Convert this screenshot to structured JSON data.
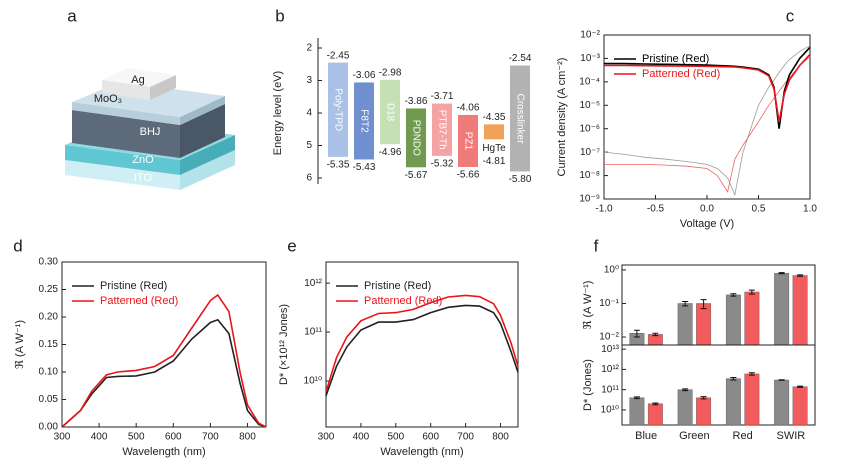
{
  "schematic": {
    "panel": "a",
    "layers": [
      "Ag",
      "MoO₃",
      "BHJ",
      "ZnO",
      "ITO"
    ]
  },
  "chart_data": [
    {
      "type": "floating_bar",
      "panel": "b",
      "ylabel": "Energy level (eV)",
      "categories": [
        "Poly-TPD",
        "F8T2",
        "D18",
        "PDNDO",
        "PTB7-Th",
        "PZ1",
        "HgTe",
        "Crosslinker"
      ],
      "colors": [
        "#a9c1e6",
        "#6f8fcf",
        "#c5e0b3",
        "#6f9a4f",
        "#f3a3a3",
        "#f07b7b",
        "#f2a05a",
        "#b3b3b3"
      ],
      "series": [
        {
          "values": [
            -2.45,
            -3.06,
            -2.98,
            -3.86,
            -3.71,
            -4.06,
            -4.35,
            -2.54
          ],
          "value_labels": [
            "-2.45",
            "-3.06",
            "-2.98",
            "-3.86",
            "-3.71",
            "-4.06",
            "-4.35",
            "-2.54"
          ]
        },
        {
          "values": [
            -5.35,
            -5.43,
            -4.96,
            -5.67,
            -5.32,
            -5.66,
            -4.81,
            -5.8
          ],
          "value_labels": [
            "-5.35",
            "-5.43",
            "-4.96",
            "-5.67",
            "-5.32",
            "-5.66",
            "-4.81",
            "-5.80"
          ]
        }
      ],
      "ylim": [
        -6,
        -2
      ],
      "yticks": [
        {
          "value": -2,
          "label": "2"
        },
        {
          "value": -3,
          "label": "3"
        },
        {
          "value": -4,
          "label": "4"
        },
        {
          "value": -5,
          "label": "5"
        },
        {
          "value": -6,
          "label": "6"
        }
      ]
    },
    {
      "type": "line",
      "panel": "c",
      "xlabel": "Voltage (V)",
      "ylabel": "Current density (A cm⁻²)",
      "log_y": true,
      "legend": "upper left",
      "x": [
        -1,
        -0.8,
        -0.6,
        -0.4,
        -0.2,
        0,
        0.1,
        0.2,
        0.27,
        0.35,
        0.5,
        0.6,
        0.65,
        0.7,
        0.75,
        0.8,
        0.9,
        1.0
      ],
      "series": [
        {
          "color": "#9a9a9a",
          "values": [
            1e-07,
            8e-08,
            6e-08,
            5e-08,
            4e-08,
            3e-08,
            2e-08,
            8e-09,
            1.5e-09,
            1e-07,
            1e-05,
            6e-05,
            0.00012,
            0.00025,
            0.0005,
            0.0009,
            0.002,
            0.0035
          ]
        },
        {
          "color": "#f06060",
          "values": [
            3e-08,
            3e-08,
            3e-08,
            2.8e-08,
            2.5e-08,
            2e-08,
            1e-08,
            2e-09,
            5e-08,
            2e-07,
            2e-06,
            1e-05,
            2e-05,
            4e-05,
            8e-05,
            0.00015,
            0.0005,
            0.0012
          ]
        },
        {
          "name": "Pristine (Red)",
          "color": "#000000",
          "values": [
            0.0006,
            0.0006,
            0.00058,
            0.00056,
            0.00054,
            0.00052,
            0.0005,
            0.00048,
            0.00046,
            0.00043,
            0.00035,
            0.0002,
            6e-05,
            1e-06,
            4e-05,
            0.0002,
            0.001,
            0.003
          ]
        },
        {
          "name": "Patterned (Red)",
          "color": "#e8151b",
          "values": [
            0.0005,
            0.0005,
            0.00049,
            0.00048,
            0.00047,
            0.00046,
            0.00045,
            0.00044,
            0.00043,
            0.0004,
            0.00032,
            0.00018,
            5e-05,
            2e-06,
            3e-05,
            0.00012,
            0.0005,
            0.0015
          ]
        }
      ],
      "xlim": [
        -1,
        1
      ],
      "xticks": [
        {
          "value": -1,
          "label": "-1.0"
        },
        -0.5,
        {
          "value": 0,
          "label": "0.0"
        },
        0.5,
        {
          "value": 1,
          "label": "1.0"
        }
      ],
      "ylim": [
        1e-09,
        0.01
      ],
      "yticks": [
        {
          "value": 1e-09,
          "label": "10⁻⁹"
        },
        {
          "value": 1e-08,
          "label": "10⁻⁸"
        },
        {
          "value": 1e-07,
          "label": "10⁻⁷"
        },
        {
          "value": 1e-06,
          "label": "10⁻⁶"
        },
        {
          "value": 1e-05,
          "label": "10⁻⁵"
        },
        {
          "value": 0.0001,
          "label": "10⁻⁴"
        },
        {
          "value": 0.001,
          "label": "10⁻³"
        },
        {
          "value": 0.01,
          "label": "10⁻²"
        }
      ]
    },
    {
      "type": "line",
      "panel": "d",
      "xlabel": "Wavelength (nm)",
      "ylabel": "ℜ (A W⁻¹)",
      "legend": "upper left",
      "x": [
        300,
        350,
        380,
        400,
        420,
        450,
        500,
        550,
        600,
        650,
        700,
        720,
        750,
        780,
        800,
        830,
        850
      ],
      "series": [
        {
          "name": "Pristine (Red)",
          "color": "#222222",
          "values": [
            0,
            0.03,
            0.06,
            0.075,
            0.09,
            0.092,
            0.093,
            0.1,
            0.12,
            0.16,
            0.19,
            0.195,
            0.17,
            0.08,
            0.03,
            0.005,
            0
          ]
        },
        {
          "name": "Patterned (Red)",
          "color": "#e8151b",
          "values": [
            0,
            0.03,
            0.065,
            0.08,
            0.095,
            0.1,
            0.103,
            0.11,
            0.13,
            0.18,
            0.23,
            0.24,
            0.21,
            0.1,
            0.04,
            0.007,
            0
          ]
        }
      ],
      "xlim": [
        300,
        850
      ],
      "xticks": [
        300,
        400,
        500,
        600,
        700,
        800
      ],
      "ylim": [
        0,
        0.3
      ],
      "yticks": [
        {
          "value": 0,
          "label": "0.00"
        },
        0.05,
        {
          "value": 0.1,
          "label": "0.10"
        },
        0.15,
        {
          "value": 0.2,
          "label": "0.20"
        },
        0.25,
        {
          "value": 0.3,
          "label": "0.30"
        }
      ]
    },
    {
      "type": "line",
      "panel": "e",
      "xlabel": "Wavelength (nm)",
      "ylabel": "D* (×10¹² Jones)",
      "log_y": true,
      "legend": "upper left",
      "x": [
        300,
        330,
        360,
        400,
        450,
        500,
        550,
        600,
        650,
        700,
        740,
        780,
        800,
        830,
        850
      ],
      "series": [
        {
          "name": "Pristine (Red)",
          "color": "#222222",
          "values": [
            5000000000.0,
            20000000000.0,
            50000000000.0,
            110000000000.0,
            160000000000.0,
            160000000000.0,
            180000000000.0,
            250000000000.0,
            320000000000.0,
            350000000000.0,
            340000000000.0,
            250000000000.0,
            150000000000.0,
            40000000000.0,
            15000000000.0
          ]
        },
        {
          "name": "Patterned (Red)",
          "color": "#e8151b",
          "values": [
            6000000000.0,
            30000000000.0,
            80000000000.0,
            170000000000.0,
            240000000000.0,
            250000000000.0,
            290000000000.0,
            400000000000.0,
            520000000000.0,
            560000000000.0,
            530000000000.0,
            380000000000.0,
            220000000000.0,
            60000000000.0,
            20000000000.0
          ]
        }
      ],
      "xlim": [
        300,
        850
      ],
      "xticks": [
        300,
        400,
        500,
        600,
        700,
        800
      ],
      "ylim": [
        1150000000.0,
        2700000000000.0
      ],
      "yticks": [
        {
          "value": 10000000000.0,
          "label": "10¹⁰"
        },
        {
          "value": 100000000000.0,
          "label": "10¹¹"
        },
        {
          "value": 1000000000000.0,
          "label": "10¹²"
        }
      ]
    },
    {
      "type": "bar",
      "panel": "f",
      "categories": [
        "Blue",
        "Green",
        "Red",
        "SWIR"
      ],
      "subplots": [
        {
          "ylabel": "ℜ (A W⁻¹)",
          "log_y": true,
          "ylim": [
            0.0058,
            1.4
          ],
          "yticks": [
            {
              "value": 0.01,
              "label": "10⁻²"
            },
            {
              "value": 0.1,
              "label": "10⁻¹"
            },
            {
              "value": 1,
              "label": "10⁰"
            }
          ],
          "series": [
            {
              "color": "#8a8a8a",
              "values": [
                0.013,
                0.1,
                0.18,
                0.8
              ],
              "errors": [
                0.003,
                0.015,
                0.015,
                0.03
              ]
            },
            {
              "color": "#f25c5c",
              "values": [
                0.012,
                0.1,
                0.22,
                0.68
              ],
              "errors": [
                0.001,
                0.03,
                0.03,
                0.03
              ]
            }
          ]
        },
        {
          "ylabel": "D* (Jones)",
          "log_y": true,
          "ylim": [
            1800000000.0,
            16000000000000.0
          ],
          "yticks": [
            {
              "value": 10000000000.0,
              "label": "10¹⁰"
            },
            {
              "value": 100000000000.0,
              "label": "10¹¹"
            },
            {
              "value": 1000000000000.0,
              "label": "10¹²"
            },
            {
              "value": 10000000000000.0,
              "label": "10¹³"
            }
          ],
          "series": [
            {
              "color": "#8a8a8a",
              "values": [
                40000000000.0,
                100000000000.0,
                350000000000.0,
                300000000000.0
              ],
              "errors": [
                4000000000.0,
                10000000000.0,
                50000000000.0,
                10000000000.0
              ]
            },
            {
              "color": "#f25c5c",
              "values": [
                20000000000.0,
                40000000000.0,
                600000000000.0,
                140000000000.0
              ],
              "errors": [
                2000000000.0,
                5000000000.0,
                80000000000.0,
                10000000000.0
              ]
            }
          ]
        }
      ]
    }
  ]
}
